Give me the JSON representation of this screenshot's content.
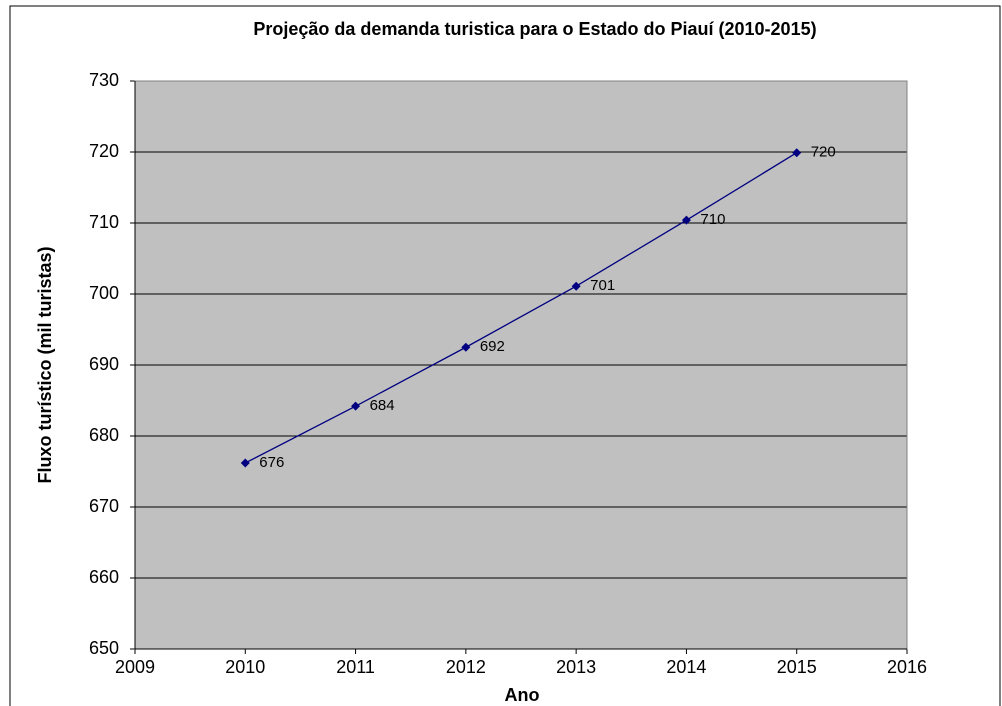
{
  "chart_data": {
    "type": "line",
    "title": "Projeção da demanda turistica para o Estado do Piauí (2010-2015)",
    "x_label": "Ano",
    "y_label": "Fluxo turístico (mil turistas)",
    "x": [
      2010,
      2011,
      2012,
      2013,
      2014,
      2015
    ],
    "series": [
      {
        "name": "Fluxo turístico",
        "color": "#000080",
        "values": [
          676.2,
          684.2,
          692.5,
          701.1,
          710.4,
          719.9
        ],
        "value_labels": [
          "676",
          "684",
          "692",
          "701",
          "710",
          "720"
        ]
      }
    ],
    "xlim": [
      2009,
      2016
    ],
    "xticks": [
      2009,
      2010,
      2011,
      2012,
      2013,
      2014,
      2015,
      2016
    ],
    "ylim": [
      650,
      730
    ],
    "yticks": [
      650,
      660,
      670,
      680,
      690,
      700,
      710,
      720,
      730
    ],
    "grid": true,
    "plot_background": "#c0c0c0"
  }
}
